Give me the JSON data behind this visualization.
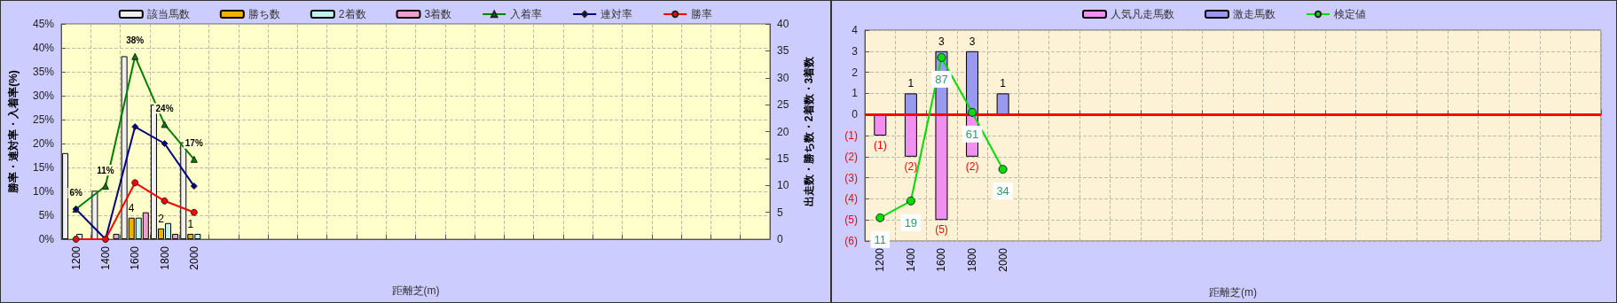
{
  "chart_data": [
    {
      "type": "bar",
      "xlabel": "距離芝(m)",
      "ylabel": "勝率・連対率・入着率(%)",
      "y2label": "出走数・勝ち数・2着数・3着数",
      "categories": [
        "1200",
        "1400",
        "1600",
        "1800",
        "2000",
        null,
        null,
        null,
        null,
        null,
        null,
        null,
        null,
        null,
        null,
        null,
        null,
        null,
        null,
        null,
        null,
        null,
        null,
        null
      ],
      "series": [
        {
          "name": "該当馬数",
          "axis": "y2",
          "color": "#f0f0f0",
          "values": [
            16,
            9,
            34,
            25,
            18,
            null,
            null,
            null,
            null,
            null,
            null,
            null,
            null,
            null,
            null,
            null,
            null,
            null,
            null,
            null,
            null,
            null,
            null,
            null
          ]
        },
        {
          "name": "勝ち数",
          "axis": "y2",
          "color": "#f0b000",
          "values": [
            0,
            0,
            4,
            2,
            1,
            null,
            null,
            null,
            null,
            null,
            null,
            null,
            null,
            null,
            null,
            null,
            null,
            null,
            null,
            null,
            null,
            null,
            null,
            null
          ],
          "value_labels": [
            null,
            null,
            "4",
            "2",
            "1",
            null,
            null,
            null,
            null,
            null,
            null,
            null,
            null,
            null,
            null,
            null,
            null,
            null,
            null,
            null,
            null,
            null,
            null,
            null
          ]
        },
        {
          "name": "2着数",
          "axis": "y2",
          "color": "#c0f4f4",
          "values": [
            1,
            0,
            4,
            3,
            1,
            null,
            null,
            null,
            null,
            null,
            null,
            null,
            null,
            null,
            null,
            null,
            null,
            null,
            null,
            null,
            null,
            null,
            null,
            null
          ]
        },
        {
          "name": "3着数",
          "axis": "y2",
          "color": "#f0a0d0",
          "values": [
            0,
            1,
            5,
            1,
            0,
            null,
            null,
            null,
            null,
            null,
            null,
            null,
            null,
            null,
            null,
            null,
            null,
            null,
            null,
            null,
            null,
            null,
            null,
            null
          ]
        },
        {
          "name": "入着率",
          "type": "line",
          "marker": "triangle",
          "color": "#008000",
          "values": [
            6.3,
            11.1,
            38.2,
            24,
            16.7,
            null,
            null,
            null,
            null,
            null,
            null,
            null,
            null,
            null,
            null,
            null,
            null,
            null,
            null,
            null,
            null,
            null,
            null,
            null
          ],
          "value_labels": [
            "6%",
            "11%",
            "38%",
            "24%",
            "17%",
            null,
            null,
            null,
            null,
            null,
            null,
            null,
            null,
            null,
            null,
            null,
            null,
            null,
            null,
            null,
            null,
            null,
            null,
            null
          ]
        },
        {
          "name": "連対率",
          "type": "line",
          "marker": "diamond",
          "color": "#000080",
          "values": [
            6.3,
            0,
            23.5,
            20,
            11.1,
            null,
            null,
            null,
            null,
            null,
            null,
            null,
            null,
            null,
            null,
            null,
            null,
            null,
            null,
            null,
            null,
            null,
            null,
            null
          ]
        },
        {
          "name": "勝率",
          "type": "line",
          "marker": "circle",
          "color": "#ff0000",
          "values": [
            0,
            0,
            11.8,
            8,
            5.6,
            null,
            null,
            null,
            null,
            null,
            null,
            null,
            null,
            null,
            null,
            null,
            null,
            null,
            null,
            null,
            null,
            null,
            null,
            null
          ]
        }
      ],
      "ylim": [
        0,
        45
      ],
      "yticks": [
        {
          "value": 0,
          "label": "0%"
        },
        {
          "value": 5,
          "label": "5%"
        },
        {
          "value": 10,
          "label": "10%"
        },
        {
          "value": 15,
          "label": "15%"
        },
        {
          "value": 20,
          "label": "20%"
        },
        {
          "value": 25,
          "label": "25%"
        },
        {
          "value": 30,
          "label": "30%"
        },
        {
          "value": 35,
          "label": "35%"
        },
        {
          "value": 40,
          "label": "40%"
        },
        {
          "value": 45,
          "label": "45%"
        }
      ],
      "y2lim": [
        0,
        40
      ],
      "y2ticks": [
        0,
        5,
        10,
        15,
        20,
        25,
        30,
        35,
        40
      ],
      "grid": true,
      "legend": "top"
    },
    {
      "type": "bar",
      "xlabel": "距離芝(m)",
      "stacked": true,
      "categories": [
        "1200",
        "1400",
        "1600",
        "1800",
        "2000",
        null,
        null,
        null,
        null,
        null,
        null,
        null,
        null,
        null,
        null,
        null,
        null,
        null,
        null,
        null,
        null,
        null,
        null,
        null
      ],
      "series": [
        {
          "name": "人気凡走馬数",
          "color": "#f090f0",
          "values": [
            -1,
            -2,
            -5,
            -2,
            null,
            null,
            null,
            null,
            null,
            null,
            null,
            null,
            null,
            null,
            null,
            null,
            null,
            null,
            null,
            null,
            null,
            null,
            null,
            null
          ],
          "value_labels": [
            "(1)",
            "(2)",
            "(5)",
            "(2)",
            null,
            null,
            null,
            null,
            null,
            null,
            null,
            null,
            null,
            null,
            null,
            null,
            null,
            null,
            null,
            null,
            null,
            null,
            null,
            null
          ]
        },
        {
          "name": "激走馬数",
          "color": "#9999ee",
          "values": [
            null,
            1,
            3,
            3,
            1,
            null,
            null,
            null,
            null,
            null,
            null,
            null,
            null,
            null,
            null,
            null,
            null,
            null,
            null,
            null,
            null,
            null,
            null,
            null
          ],
          "value_labels": [
            null,
            "1",
            "3",
            "3",
            "1",
            null,
            null,
            null,
            null,
            null,
            null,
            null,
            null,
            null,
            null,
            null,
            null,
            null,
            null,
            null,
            null,
            null,
            null,
            null
          ]
        },
        {
          "name": "検定値",
          "type": "line",
          "axis": "y2",
          "marker": "circle",
          "color": "#00dd00",
          "values": [
            11,
            19,
            87,
            61,
            34,
            null,
            null,
            null,
            null,
            null,
            null,
            null,
            null,
            null,
            null,
            null,
            null,
            null,
            null,
            null,
            null,
            null,
            null,
            null
          ],
          "value_labels": [
            "11",
            "19",
            "87",
            "61",
            "34",
            null,
            null,
            null,
            null,
            null,
            null,
            null,
            null,
            null,
            null,
            null,
            null,
            null,
            null,
            null,
            null,
            null,
            null,
            null
          ]
        }
      ],
      "ylim": [
        -6,
        4
      ],
      "yticks": [
        {
          "value": -6,
          "label": "(6)"
        },
        {
          "value": -5,
          "label": "(5)"
        },
        {
          "value": -4,
          "label": "(4)"
        },
        {
          "value": -3,
          "label": "(3)"
        },
        {
          "value": -2,
          "label": "(2)"
        },
        {
          "value": -1,
          "label": "(1)"
        },
        0,
        1,
        2,
        3,
        4
      ],
      "y2lim": [
        0,
        100
      ],
      "tick_labels": "xy",
      "ref_lines": [
        {
          "axis": "y",
          "value": 0,
          "color": "#ff0000"
        }
      ],
      "grid": true,
      "legend": "top"
    }
  ]
}
